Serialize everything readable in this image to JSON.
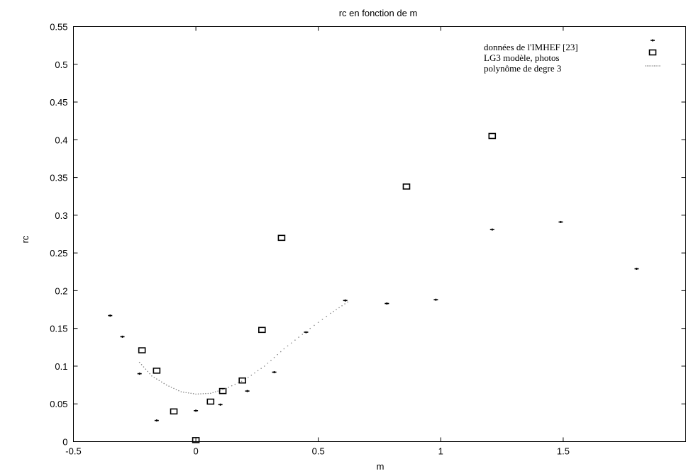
{
  "chart_data": {
    "type": "scatter",
    "title": "rc en fonction de m",
    "xlabel": "m",
    "ylabel": "rc",
    "xlim": [
      -0.5,
      2
    ],
    "ylim": [
      0,
      0.55
    ],
    "x_ticks": [
      -0.5,
      0,
      0.5,
      1,
      1.5,
      2
    ],
    "x_tick_labels": [
      "-0.5",
      "0",
      "0.5",
      "1",
      "1.5",
      ""
    ],
    "y_ticks": [
      0,
      0.05,
      0.1,
      0.15,
      0.2,
      0.25,
      0.3,
      0.35,
      0.4,
      0.45,
      0.5,
      0.55
    ],
    "y_tick_labels": [
      "0",
      "0.05",
      "0.1",
      "0.15",
      "0.2",
      "0.25",
      "0.3",
      "0.35",
      "0.4",
      "0.45",
      "0.5",
      "0.55"
    ],
    "grid": false,
    "legend_position": "top-right",
    "series": [
      {
        "name": "données de l'IMHEF [23]",
        "marker": "plus",
        "color": "#000000",
        "x": [
          -0.35,
          -0.3,
          -0.23,
          -0.16,
          0,
          0.1,
          0.21,
          0.32,
          0.45,
          0.61,
          0.78,
          0.98,
          1.21,
          1.49,
          1.8
        ],
        "y": [
          0.167,
          0.139,
          0.09,
          0.028,
          0.041,
          0.049,
          0.067,
          0.092,
          0.145,
          0.187,
          0.183,
          0.188,
          0.281,
          0.291,
          0.229
        ]
      },
      {
        "name": "LG3 modèle, photos",
        "marker": "square",
        "color": "#000000",
        "x": [
          -0.22,
          -0.16,
          -0.09,
          0,
          0.06,
          0.11,
          0.19,
          0.27,
          0.35,
          0.86,
          1.21
        ],
        "y": [
          0.121,
          0.094,
          0.04,
          0.002,
          0.053,
          0.067,
          0.081,
          0.148,
          0.27,
          0.338,
          0.405
        ]
      },
      {
        "name": "polynôme de degre 3",
        "marker": "dots",
        "color": "#888888",
        "x": [
          -0.23,
          -0.18,
          -0.12,
          -0.06,
          0,
          0.06,
          0.12,
          0.2,
          0.28,
          0.36,
          0.45,
          0.55,
          0.62
        ],
        "y": [
          0.105,
          0.087,
          0.075,
          0.066,
          0.063,
          0.064,
          0.07,
          0.082,
          0.1,
          0.123,
          0.146,
          0.17,
          0.185
        ]
      }
    ]
  }
}
